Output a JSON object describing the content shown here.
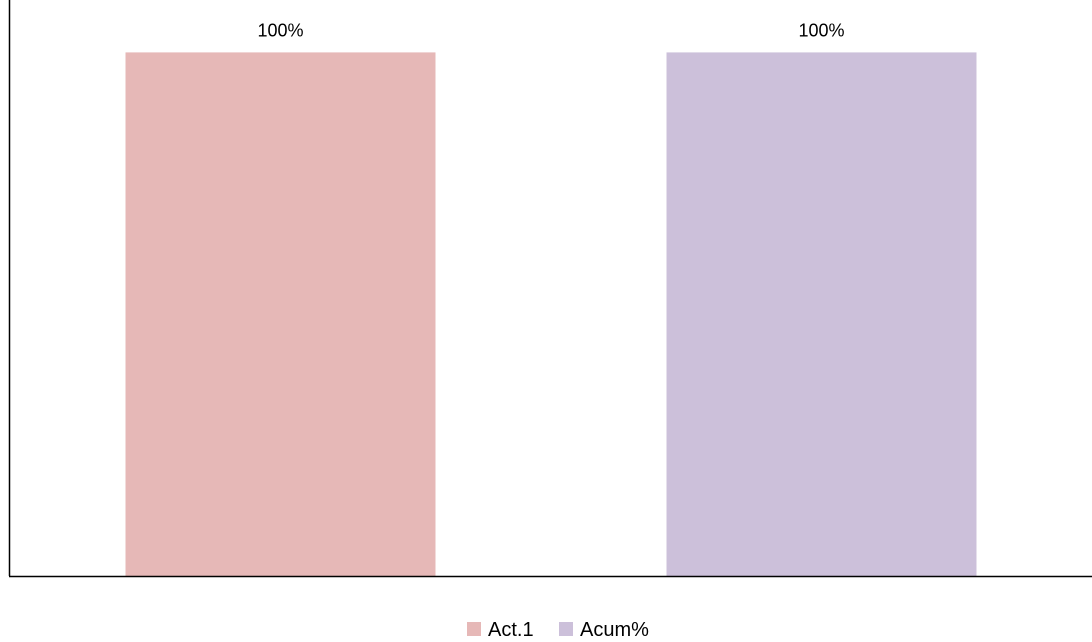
{
  "chart_data": {
    "type": "bar",
    "series": [
      {
        "name": "Act.1",
        "value": 100,
        "label": "100%",
        "color": "#E6B8B7"
      },
      {
        "name": "Acum%",
        "value": 100,
        "label": "100%",
        "color": "#CCC0DA"
      }
    ],
    "ylim": [
      0,
      110
    ],
    "grid": false,
    "legend_position": "bottom",
    "axis_color": "#000000"
  }
}
